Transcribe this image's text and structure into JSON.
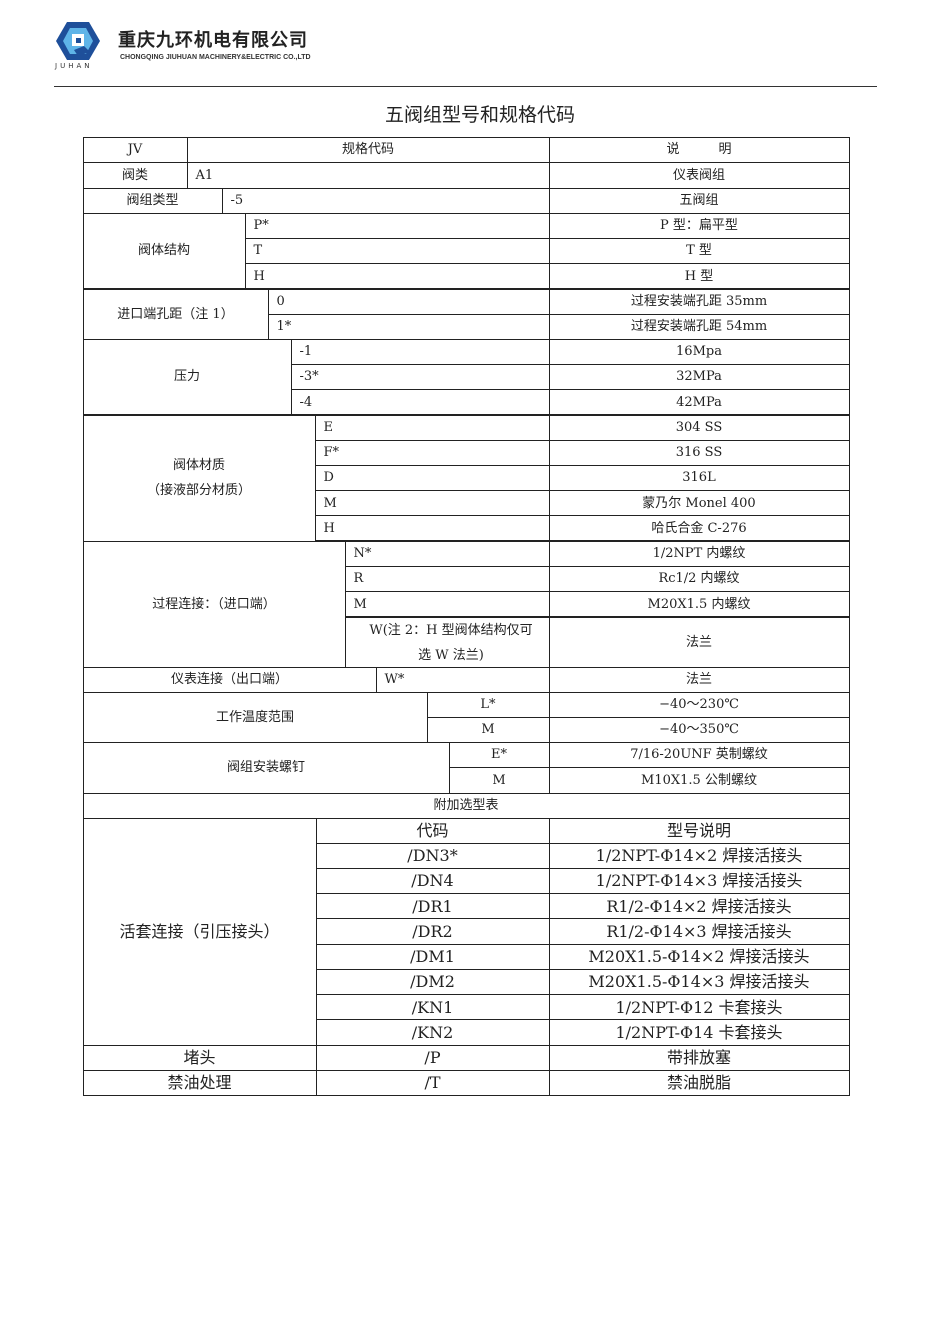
{
  "header": {
    "company_cn": "重庆九环机电有限公司",
    "company_en": "CHONGQING JIUHUAN MACHINERY&ELECTRIC CO.,LTD",
    "logo_text": "JUHAN",
    "logo_colors": [
      "#1e4f9a",
      "#5fb4e8"
    ]
  },
  "title": "五阀组型号和规格代码",
  "table": {
    "head": {
      "a": "JV",
      "b": "规格代码",
      "c": "说　　　明"
    },
    "valve_class": {
      "label": "阀类",
      "code": "A1",
      "desc": "仪表阀组"
    },
    "group_type": {
      "label": "阀组类型",
      "code": "-5",
      "desc": "五阀组"
    },
    "body": {
      "label": "阀体结构",
      "rows": [
        {
          "code": "P*",
          "desc": "P 型：扁平型"
        },
        {
          "code": "T",
          "desc": "T 型"
        },
        {
          "code": "H",
          "desc": "H 型"
        }
      ]
    },
    "inlet": {
      "label": "进口端孔距（注 1）",
      "rows": [
        {
          "code": "0",
          "desc": "过程安装端孔距 35mm"
        },
        {
          "code": "1*",
          "desc": "过程安装端孔距 54mm"
        }
      ]
    },
    "pressure": {
      "label": "压力",
      "rows": [
        {
          "code": "-1",
          "desc": "16Mpa"
        },
        {
          "code": "-3*",
          "desc": "32MPa"
        },
        {
          "code": "-4",
          "desc": "42MPa"
        }
      ]
    },
    "material": {
      "label": "阀体材质",
      "label2": "（接液部分材质）",
      "rows": [
        {
          "code": "E",
          "desc": "304 SS"
        },
        {
          "code": "F*",
          "desc": "316 SS"
        },
        {
          "code": "D",
          "desc": "316L"
        },
        {
          "code": "M",
          "desc": "蒙乃尔 Monel 400"
        },
        {
          "code": "H",
          "desc": "哈氏合金 C-276"
        }
      ]
    },
    "process": {
      "label": "过程连接：（进口端）",
      "rows": [
        {
          "code": "N*",
          "desc": "1/2NPT 内螺纹"
        },
        {
          "code": "R",
          "desc": "Rc1/2 内螺纹"
        },
        {
          "code": "M",
          "desc": "M20X1.5 内螺纹"
        },
        {
          "code": "W(注 2：H 型阀体结构仅可",
          "code2": "选 W 法兰)",
          "desc": "法兰"
        }
      ]
    },
    "instrument": {
      "label": "仪表连接（出口端）",
      "code": "W*",
      "desc": "法兰"
    },
    "temperature": {
      "label": "工作温度范围",
      "rows": [
        {
          "code": "L*",
          "desc": "−40～230℃"
        },
        {
          "code": "M",
          "desc": "−40～350℃"
        }
      ]
    },
    "screw": {
      "label": "阀组安装螺钉",
      "rows": [
        {
          "code": "E*",
          "desc": "7/16-20UNF 英制螺纹"
        },
        {
          "code": "M",
          "desc": "M10X1.5 公制螺纹"
        }
      ]
    },
    "extra_title": "附加选型表",
    "union": {
      "label": "活套连接（引压接头）",
      "code_head": "代码",
      "desc_head": "型号说明",
      "rows": [
        {
          "code": "/DN3*",
          "desc": "1/2NPT-Φ14×2 焊接活接头"
        },
        {
          "code": "/DN4",
          "desc": "1/2NPT-Φ14×3 焊接活接头"
        },
        {
          "code": "/DR1",
          "desc": "R1/2-Φ14×2 焊接活接头"
        },
        {
          "code": "/DR2",
          "desc": "R1/2-Φ14×3 焊接活接头"
        },
        {
          "code": "/DM1",
          "desc": "M20X1.5-Φ14×2 焊接活接头"
        },
        {
          "code": "/DM2",
          "desc": "M20X1.5-Φ14×3 焊接活接头"
        },
        {
          "code": "/KN1",
          "desc": "1/2NPT-Φ12 卡套接头"
        },
        {
          "code": "/KN2",
          "desc": "1/2NPT-Φ14 卡套接头"
        }
      ]
    },
    "plug": {
      "label": "堵头",
      "code": "/P",
      "desc": "带排放塞"
    },
    "oilfree": {
      "label": "禁油处理",
      "code": "/T",
      "desc": "禁油脱脂"
    }
  }
}
